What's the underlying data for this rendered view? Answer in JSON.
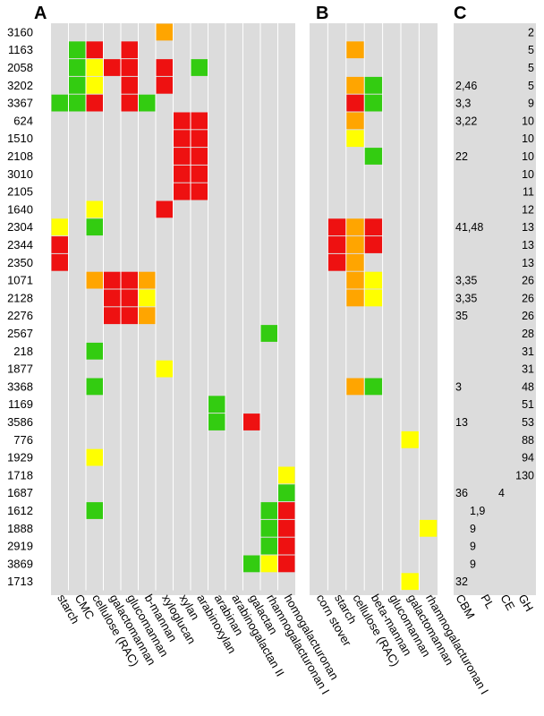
{
  "chart_data": {
    "type": "heatmap",
    "panel_letters": [
      "A",
      "B",
      "C"
    ],
    "rows": [
      "3160",
      "1163",
      "2058",
      "3202",
      "3367",
      "624",
      "1510",
      "2108",
      "3010",
      "2105",
      "1640",
      "2304",
      "2344",
      "2350",
      "1071",
      "2128",
      "2276",
      "2567",
      "218",
      "1877",
      "3368",
      "1169",
      "3586",
      "776",
      "1929",
      "1718",
      "1687",
      "1612",
      "1888",
      "2919",
      "3869",
      "1713"
    ],
    "color_levels": {
      "G": "#33cc11",
      "Y": "#ffff00",
      "O": "#ffa500",
      "R": "#ee1111"
    },
    "background_color": "#dcdcdc",
    "panel_A": {
      "columns": [
        "starch",
        "CMC",
        "cellulose (RAC)",
        "galactomannan",
        "glucomannan",
        "b-mannan",
        "xyloglucan",
        "xylan",
        "arabinoxylan",
        "arabinan",
        "arabinogalactan II",
        "galactan",
        "rhamnogalacturonan I",
        "homogalacturonan"
      ],
      "cells": [
        [
          0,
          6,
          "O"
        ],
        [
          1,
          1,
          "G"
        ],
        [
          1,
          2,
          "R"
        ],
        [
          1,
          4,
          "R"
        ],
        [
          2,
          1,
          "G"
        ],
        [
          2,
          2,
          "Y"
        ],
        [
          2,
          3,
          "R"
        ],
        [
          2,
          4,
          "R"
        ],
        [
          2,
          6,
          "R"
        ],
        [
          2,
          8,
          "G"
        ],
        [
          3,
          1,
          "G"
        ],
        [
          3,
          2,
          "Y"
        ],
        [
          3,
          4,
          "R"
        ],
        [
          3,
          6,
          "R"
        ],
        [
          4,
          0,
          "G"
        ],
        [
          4,
          1,
          "G"
        ],
        [
          4,
          2,
          "R"
        ],
        [
          4,
          4,
          "R"
        ],
        [
          4,
          5,
          "G"
        ],
        [
          5,
          7,
          "R"
        ],
        [
          5,
          8,
          "R"
        ],
        [
          6,
          7,
          "R"
        ],
        [
          6,
          8,
          "R"
        ],
        [
          7,
          7,
          "R"
        ],
        [
          7,
          8,
          "R"
        ],
        [
          8,
          7,
          "R"
        ],
        [
          8,
          8,
          "R"
        ],
        [
          9,
          7,
          "R"
        ],
        [
          9,
          8,
          "R"
        ],
        [
          10,
          2,
          "Y"
        ],
        [
          10,
          6,
          "R"
        ],
        [
          11,
          0,
          "Y"
        ],
        [
          11,
          2,
          "G"
        ],
        [
          12,
          0,
          "R"
        ],
        [
          13,
          0,
          "R"
        ],
        [
          14,
          2,
          "O"
        ],
        [
          14,
          3,
          "R"
        ],
        [
          14,
          4,
          "R"
        ],
        [
          14,
          5,
          "O"
        ],
        [
          15,
          3,
          "R"
        ],
        [
          15,
          4,
          "R"
        ],
        [
          15,
          5,
          "Y"
        ],
        [
          16,
          3,
          "R"
        ],
        [
          16,
          4,
          "R"
        ],
        [
          16,
          5,
          "O"
        ],
        [
          17,
          12,
          "G"
        ],
        [
          18,
          2,
          "G"
        ],
        [
          19,
          6,
          "Y"
        ],
        [
          20,
          2,
          "G"
        ],
        [
          21,
          9,
          "G"
        ],
        [
          22,
          9,
          "G"
        ],
        [
          22,
          11,
          "R"
        ],
        [
          24,
          2,
          "Y"
        ],
        [
          25,
          13,
          "Y"
        ],
        [
          26,
          13,
          "G"
        ],
        [
          27,
          2,
          "G"
        ],
        [
          27,
          12,
          "G"
        ],
        [
          27,
          13,
          "R"
        ],
        [
          28,
          12,
          "G"
        ],
        [
          28,
          13,
          "R"
        ],
        [
          29,
          12,
          "G"
        ],
        [
          29,
          13,
          "R"
        ],
        [
          30,
          11,
          "G"
        ],
        [
          30,
          12,
          "Y"
        ],
        [
          30,
          13,
          "R"
        ]
      ]
    },
    "panel_B": {
      "columns": [
        "corn stover",
        "starch",
        "cellulose (RAC)",
        "beta-mannan",
        "glucomannan",
        "galactomannan",
        "rhamnogalacturonan I"
      ],
      "cells": [
        [
          1,
          2,
          "O"
        ],
        [
          3,
          2,
          "O"
        ],
        [
          3,
          3,
          "G"
        ],
        [
          4,
          2,
          "R"
        ],
        [
          4,
          3,
          "G"
        ],
        [
          5,
          2,
          "O"
        ],
        [
          6,
          2,
          "Y"
        ],
        [
          7,
          3,
          "G"
        ],
        [
          11,
          1,
          "R"
        ],
        [
          11,
          2,
          "O"
        ],
        [
          11,
          3,
          "R"
        ],
        [
          12,
          1,
          "R"
        ],
        [
          12,
          2,
          "O"
        ],
        [
          12,
          3,
          "R"
        ],
        [
          13,
          1,
          "R"
        ],
        [
          13,
          2,
          "O"
        ],
        [
          14,
          2,
          "O"
        ],
        [
          14,
          3,
          "Y"
        ],
        [
          15,
          2,
          "O"
        ],
        [
          15,
          3,
          "Y"
        ],
        [
          20,
          2,
          "O"
        ],
        [
          20,
          3,
          "G"
        ],
        [
          23,
          5,
          "Y"
        ],
        [
          28,
          6,
          "Y"
        ],
        [
          31,
          5,
          "Y"
        ]
      ]
    },
    "panel_C": {
      "columns": [
        "CBM",
        "PL",
        "CE",
        "GH"
      ],
      "cbm": [
        "",
        "",
        "",
        "2,46",
        "3,3",
        "3,22",
        "",
        "22",
        "",
        "",
        "",
        "41,48",
        "",
        "",
        "3,35",
        "3,35",
        "35",
        "",
        "",
        "",
        "3",
        "",
        "13",
        "",
        "",
        "",
        "36",
        "",
        "",
        "",
        "",
        "32"
      ],
      "pl": [
        "",
        "",
        "",
        "",
        "",
        "",
        "",
        "",
        "",
        "",
        "",
        "",
        "",
        "",
        "",
        "",
        "",
        "",
        "",
        "",
        "",
        "",
        "",
        "",
        "",
        "",
        "",
        "1,9",
        "9",
        "9",
        "9",
        ""
      ],
      "ce": [
        "",
        "",
        "",
        "",
        "",
        "",
        "",
        "",
        "",
        "",
        "",
        "",
        "",
        "",
        "",
        "",
        "",
        "",
        "",
        "",
        "",
        "",
        "",
        "",
        "",
        "",
        "4",
        "",
        "",
        "",
        "",
        ""
      ],
      "gh": [
        "2",
        "5",
        "5",
        "5",
        "9",
        "10",
        "10",
        "10",
        "10",
        "11",
        "12",
        "13",
        "13",
        "13",
        "26",
        "26",
        "26",
        "28",
        "31",
        "31",
        "48",
        "51",
        "53",
        "88",
        "94",
        "130",
        "",
        "",
        "",
        "",
        "",
        ""
      ]
    }
  }
}
